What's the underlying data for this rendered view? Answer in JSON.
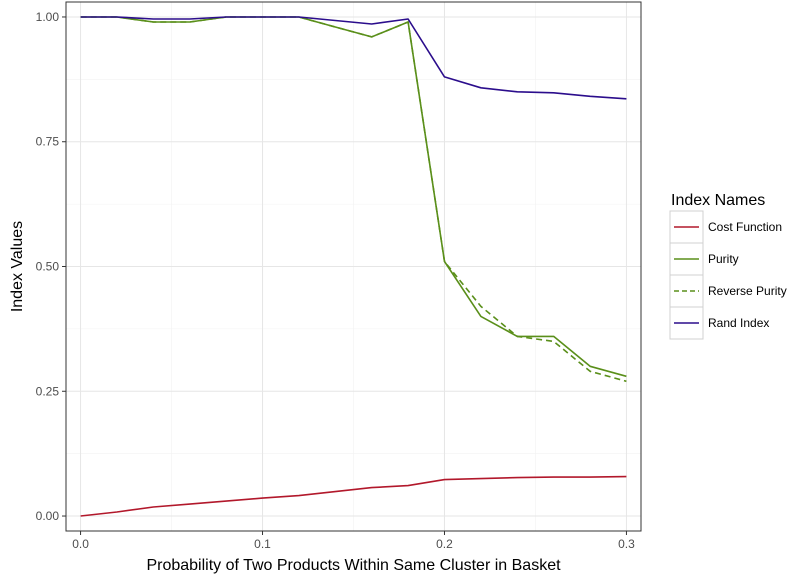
{
  "chart_data": {
    "type": "line",
    "xlabel": "Probability of Two Products Within Same Cluster in Basket",
    "ylabel": "Index Values",
    "xlim": [
      -0.008,
      0.308
    ],
    "ylim": [
      -0.03,
      1.03
    ],
    "x_ticks": [
      0.0,
      0.1,
      0.2,
      0.3
    ],
    "x_tick_labels": [
      "0.0",
      "0.1",
      "0.2",
      "0.3"
    ],
    "y_ticks": [
      0.0,
      0.25,
      0.5,
      0.75,
      1.0
    ],
    "y_tick_labels": [
      "0.00",
      "0.25",
      "0.50",
      "0.75",
      "1.00"
    ],
    "grid": true,
    "legend": {
      "title": "Index Names",
      "placement": "right"
    },
    "x": [
      0.0,
      0.02,
      0.04,
      0.06,
      0.08,
      0.1,
      0.12,
      0.14,
      0.16,
      0.18,
      0.2,
      0.22,
      0.24,
      0.26,
      0.28,
      0.3
    ],
    "series": [
      {
        "name": "Cost Function",
        "color": "#b2182b",
        "dash": "solid",
        "values": [
          0.0,
          0.008,
          0.018,
          0.024,
          0.03,
          0.036,
          0.041,
          0.049,
          0.057,
          0.061,
          0.073,
          0.075,
          0.077,
          0.078,
          0.078,
          0.079
        ]
      },
      {
        "name": "Purity",
        "color": "#5a8f1a",
        "dash": "solid",
        "values": [
          1.0,
          1.0,
          0.99,
          0.99,
          1.0,
          1.0,
          1.0,
          0.98,
          0.96,
          0.99,
          0.51,
          0.4,
          0.36,
          0.36,
          0.3,
          0.28
        ]
      },
      {
        "name": "Reverse Purity",
        "color": "#5a8f1a",
        "dash": "dashed",
        "values": [
          1.0,
          1.0,
          0.99,
          0.99,
          1.0,
          1.0,
          1.0,
          0.98,
          0.96,
          0.99,
          0.51,
          0.42,
          0.36,
          0.35,
          0.29,
          0.27
        ]
      },
      {
        "name": "Rand Index",
        "color": "#2b0d8c",
        "dash": "solid",
        "values": [
          1.0,
          1.0,
          0.996,
          0.996,
          1.0,
          1.0,
          1.0,
          0.993,
          0.986,
          0.996,
          0.88,
          0.858,
          0.85,
          0.848,
          0.841,
          0.836
        ]
      }
    ]
  }
}
